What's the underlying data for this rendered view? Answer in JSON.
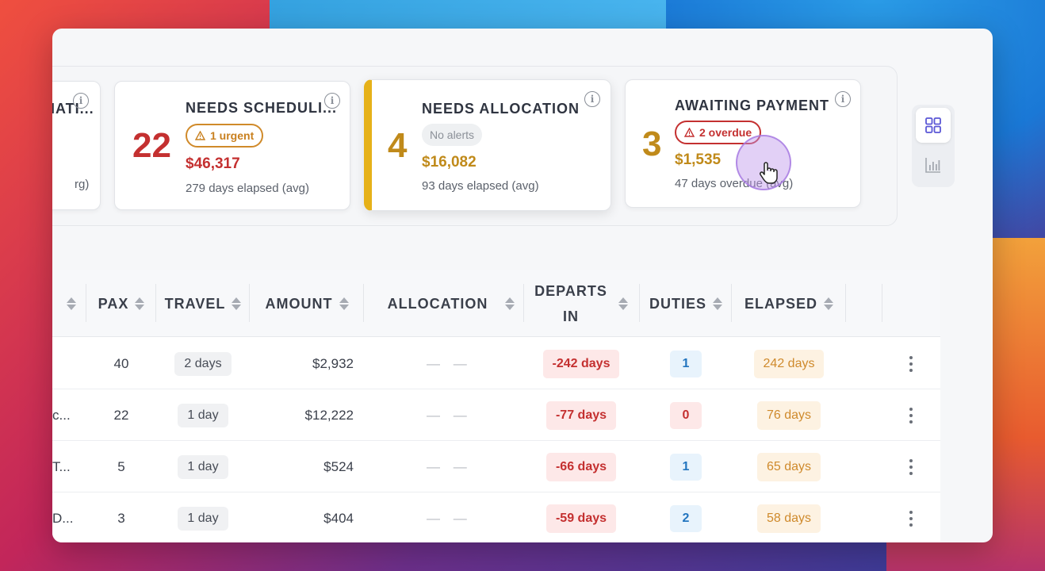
{
  "cards": [
    {
      "title": "MATI...",
      "sub": "rg)"
    },
    {
      "title": "NEEDS SCHEDULI...",
      "count": "22",
      "badge": "1 urgent",
      "amount": "$46,317",
      "sub": "279 days elapsed (avg)"
    },
    {
      "title": "NEEDS ALLOCATION",
      "count": "4",
      "badge": "No alerts",
      "amount": "$16,082",
      "sub": "93 days elapsed (avg)"
    },
    {
      "title": "AWAITING PAYMENT",
      "count": "3",
      "badge": "2 overdue",
      "amount": "$1,535",
      "sub": "47 days overdue (avg)"
    }
  ],
  "colors": {
    "red": "#c43030",
    "gold": "#c08a1a",
    "accent_border": "#e6b118",
    "view_active": "#5b57d6"
  },
  "table": {
    "headers": {
      "pax": "PAX",
      "travel": "TRAVEL",
      "amount": "AMOUNT",
      "allocation": "ALLOCATION",
      "departs_1": "DEPARTS",
      "departs_2": "IN",
      "duties": "DUTIES",
      "elapsed": "ELAPSED"
    },
    "rows": [
      {
        "name": "",
        "pax": "40",
        "travel": "2 days",
        "amount": "$2,932",
        "allocation": "— —",
        "departs": "-242 days",
        "duties": "1",
        "elapsed": "242 days"
      },
      {
        "name": "c...",
        "pax": "22",
        "travel": "1 day",
        "amount": "$12,222",
        "allocation": "— —",
        "departs": "-77 days",
        "duties": "0",
        "elapsed": "76 days"
      },
      {
        "name": "T...",
        "pax": "5",
        "travel": "1 day",
        "amount": "$524",
        "allocation": "— —",
        "departs": "-66 days",
        "duties": "1",
        "elapsed": "65 days"
      },
      {
        "name": "D...",
        "pax": "3",
        "travel": "1 day",
        "amount": "$404",
        "allocation": "— —",
        "departs": "-59 days",
        "duties": "2",
        "elapsed": "58 days"
      }
    ]
  },
  "icons": {
    "info": "info-icon",
    "warning": "warning-triangle-icon",
    "grid_view": "grid-view-icon",
    "chart_view": "bar-chart-icon",
    "row_menu": "kebab-menu-icon",
    "sort": "sort-icon",
    "cursor": "hand-pointer-icon"
  }
}
